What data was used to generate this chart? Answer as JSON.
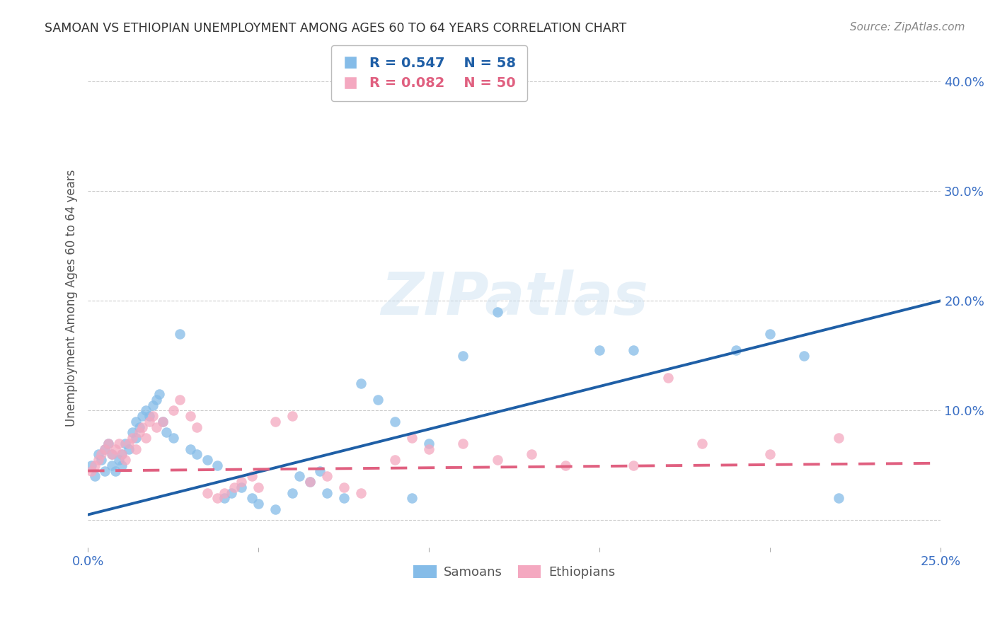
{
  "title": "SAMOAN VS ETHIOPIAN UNEMPLOYMENT AMONG AGES 60 TO 64 YEARS CORRELATION CHART",
  "source": "Source: ZipAtlas.com",
  "ylabel": "Unemployment Among Ages 60 to 64 years",
  "xlim": [
    0.0,
    0.25
  ],
  "ylim": [
    -0.025,
    0.43
  ],
  "background_color": "#ffffff",
  "grid_color": "#cccccc",
  "watermark_text": "ZIPatlas",
  "samoan_color": "#85bce8",
  "ethiopian_color": "#f4a8c0",
  "samoan_line_color": "#1f5fa6",
  "ethiopian_line_color": "#e06080",
  "legend_R_samoan": "R = 0.547",
  "legend_N_samoan": "N = 58",
  "legend_R_ethiopian": "R = 0.082",
  "legend_N_ethiopian": "N = 50",
  "samoan_regression": [
    0.78,
    0.005
  ],
  "ethiopian_regression": [
    0.028,
    0.045
  ],
  "samoan_x": [
    0.001,
    0.002,
    0.003,
    0.004,
    0.005,
    0.005,
    0.006,
    0.007,
    0.007,
    0.008,
    0.009,
    0.01,
    0.01,
    0.011,
    0.012,
    0.013,
    0.014,
    0.014,
    0.015,
    0.016,
    0.017,
    0.018,
    0.019,
    0.02,
    0.021,
    0.022,
    0.023,
    0.025,
    0.027,
    0.03,
    0.032,
    0.035,
    0.038,
    0.04,
    0.042,
    0.045,
    0.048,
    0.05,
    0.055,
    0.06,
    0.062,
    0.065,
    0.068,
    0.07,
    0.075,
    0.08,
    0.085,
    0.09,
    0.095,
    0.1,
    0.11,
    0.12,
    0.15,
    0.16,
    0.19,
    0.2,
    0.21,
    0.22
  ],
  "samoan_y": [
    0.05,
    0.04,
    0.06,
    0.055,
    0.045,
    0.065,
    0.07,
    0.06,
    0.05,
    0.045,
    0.055,
    0.05,
    0.06,
    0.07,
    0.065,
    0.08,
    0.075,
    0.09,
    0.085,
    0.095,
    0.1,
    0.095,
    0.105,
    0.11,
    0.115,
    0.09,
    0.08,
    0.075,
    0.17,
    0.065,
    0.06,
    0.055,
    0.05,
    0.02,
    0.025,
    0.03,
    0.02,
    0.015,
    0.01,
    0.025,
    0.04,
    0.035,
    0.045,
    0.025,
    0.02,
    0.125,
    0.11,
    0.09,
    0.02,
    0.07,
    0.15,
    0.19,
    0.155,
    0.155,
    0.155,
    0.17,
    0.15,
    0.02
  ],
  "ethiopian_x": [
    0.001,
    0.002,
    0.003,
    0.004,
    0.005,
    0.006,
    0.007,
    0.008,
    0.009,
    0.01,
    0.011,
    0.012,
    0.013,
    0.014,
    0.015,
    0.016,
    0.017,
    0.018,
    0.019,
    0.02,
    0.022,
    0.025,
    0.027,
    0.03,
    0.032,
    0.035,
    0.038,
    0.04,
    0.043,
    0.045,
    0.048,
    0.05,
    0.055,
    0.06,
    0.065,
    0.07,
    0.075,
    0.08,
    0.09,
    0.095,
    0.1,
    0.11,
    0.12,
    0.13,
    0.14,
    0.16,
    0.17,
    0.18,
    0.2,
    0.22
  ],
  "ethiopian_y": [
    0.045,
    0.05,
    0.055,
    0.06,
    0.065,
    0.07,
    0.06,
    0.065,
    0.07,
    0.06,
    0.055,
    0.07,
    0.075,
    0.065,
    0.08,
    0.085,
    0.075,
    0.09,
    0.095,
    0.085,
    0.09,
    0.1,
    0.11,
    0.095,
    0.085,
    0.025,
    0.02,
    0.025,
    0.03,
    0.035,
    0.04,
    0.03,
    0.09,
    0.095,
    0.035,
    0.04,
    0.03,
    0.025,
    0.055,
    0.075,
    0.065,
    0.07,
    0.055,
    0.06,
    0.05,
    0.05,
    0.13,
    0.07,
    0.06,
    0.075
  ]
}
